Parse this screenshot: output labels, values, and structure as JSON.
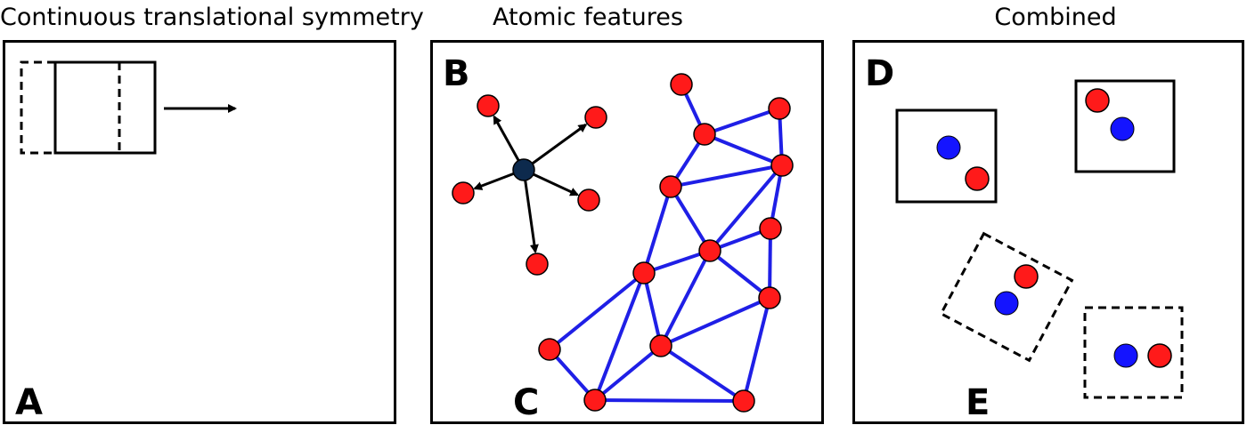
{
  "titles": {
    "symmetry": "Continuous translational symmetry",
    "atomic": "Atomic features",
    "combined": "Combined"
  },
  "panel_letters": {
    "a": "A",
    "b": "B",
    "c": "C",
    "d": "D",
    "e": "E"
  },
  "colors": {
    "atom": "#ff1a1a",
    "central_atom": "#0d2a4d",
    "blue_atom": "#1414ff",
    "bond": "#1f1fe6",
    "frame": "#000000"
  }
}
